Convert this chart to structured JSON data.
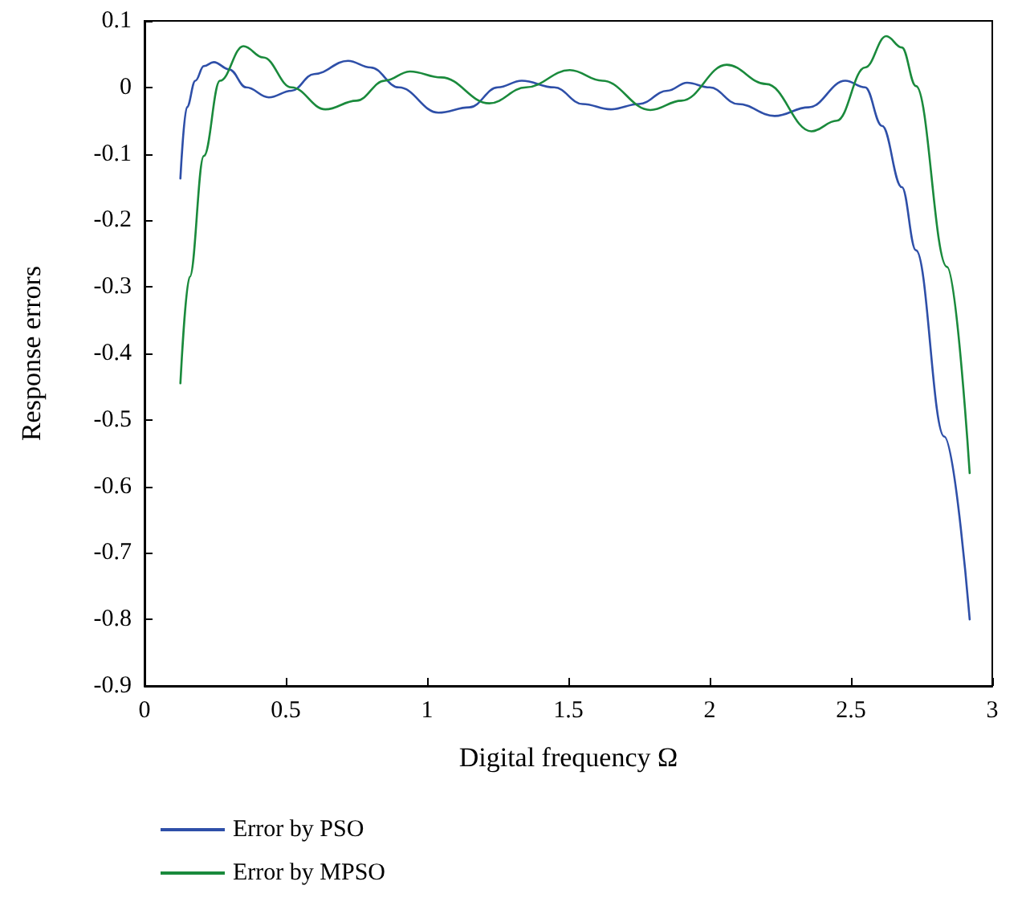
{
  "chart_data": {
    "type": "line",
    "xlabel": "Digital frequency Ω",
    "ylabel": "Response errors",
    "xlim": [
      0,
      3
    ],
    "xticks": [
      0,
      0.5,
      1,
      1.5,
      2,
      2.5,
      3
    ],
    "ylim": [
      -0.9,
      0.1
    ],
    "yticks": [
      -0.9,
      -0.8,
      -0.7,
      -0.6,
      -0.5,
      -0.4,
      -0.3,
      -0.2,
      -0.1,
      0,
      0.1
    ],
    "grid": false,
    "legend": "bottom left",
    "marker": "none",
    "line_style": "solid",
    "series": [
      {
        "name": "Error by PSO",
        "color": "#2e4fa8",
        "x": [
          0.127,
          0.15,
          0.18,
          0.21,
          0.245,
          0.3,
          0.36,
          0.44,
          0.52,
          0.6,
          0.72,
          0.8,
          0.9,
          1.04,
          1.15,
          1.25,
          1.335,
          1.45,
          1.55,
          1.65,
          1.75,
          1.85,
          1.92,
          2.0,
          2.1,
          2.23,
          2.35,
          2.48,
          2.55,
          2.61,
          2.68,
          2.73,
          2.83,
          2.92
        ],
        "values": [
          -0.137,
          -0.03,
          0.01,
          0.032,
          0.038,
          0.027,
          0.0,
          -0.015,
          -0.005,
          0.02,
          0.04,
          0.03,
          0.0,
          -0.038,
          -0.03,
          0.0,
          0.01,
          0.0,
          -0.025,
          -0.033,
          -0.025,
          -0.005,
          0.007,
          0.0,
          -0.025,
          -0.043,
          -0.03,
          0.01,
          0.0,
          -0.058,
          -0.15,
          -0.245,
          -0.525,
          -0.8
        ]
      },
      {
        "name": "Error by MPSO",
        "color": "#1a8a3c",
        "x": [
          0.127,
          0.16,
          0.21,
          0.267,
          0.35,
          0.42,
          0.52,
          0.64,
          0.75,
          0.85,
          0.94,
          1.05,
          1.22,
          1.35,
          1.505,
          1.62,
          1.79,
          1.9,
          2.06,
          2.2,
          2.36,
          2.45,
          2.55,
          2.625,
          2.68,
          2.73,
          2.84,
          2.92
        ],
        "values": [
          -0.445,
          -0.285,
          -0.103,
          0.01,
          0.062,
          0.045,
          0.0,
          -0.033,
          -0.02,
          0.01,
          0.024,
          0.015,
          -0.024,
          0.0,
          0.026,
          0.01,
          -0.034,
          -0.02,
          0.034,
          0.005,
          -0.066,
          -0.05,
          0.03,
          0.077,
          0.06,
          0.002,
          -0.27,
          -0.58
        ]
      }
    ]
  }
}
